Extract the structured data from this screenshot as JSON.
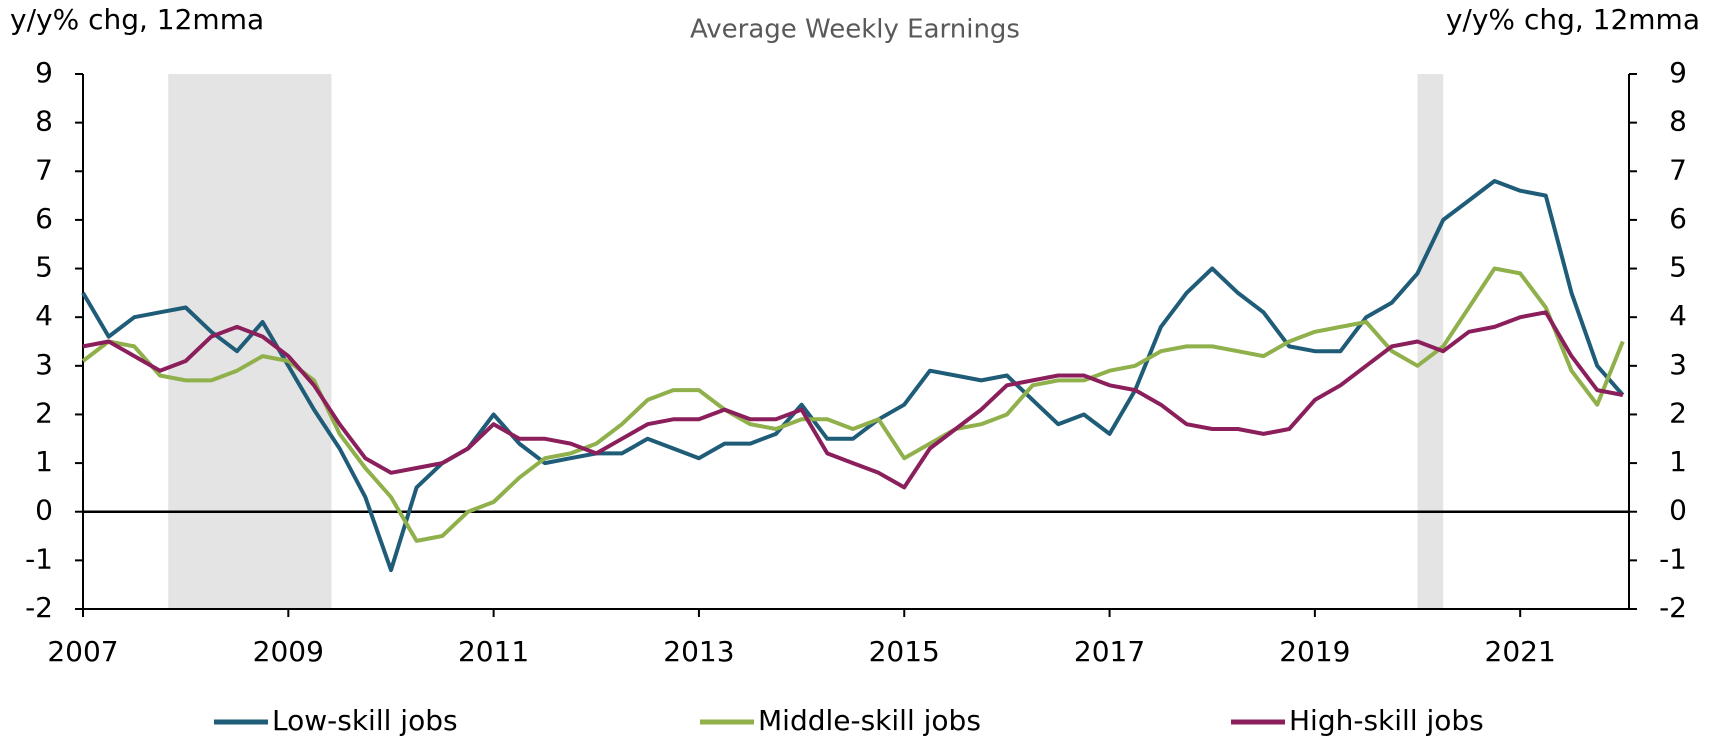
{
  "chart_data": {
    "type": "line",
    "title": "Average Weekly Earnings",
    "y_label": "y/y% chg, 12mma",
    "y2_label": "y/y% chg, 12mma",
    "x": [
      2007,
      2007.25,
      2007.5,
      2007.75,
      2008,
      2008.25,
      2008.5,
      2008.75,
      2009,
      2009.25,
      2009.5,
      2009.75,
      2010,
      2010.25,
      2010.5,
      2010.75,
      2011,
      2011.25,
      2011.5,
      2011.75,
      2012,
      2012.25,
      2012.5,
      2012.75,
      2013,
      2013.25,
      2013.5,
      2013.75,
      2014,
      2014.25,
      2014.5,
      2014.75,
      2015,
      2015.25,
      2015.5,
      2015.75,
      2016,
      2016.25,
      2016.5,
      2016.75,
      2017,
      2017.25,
      2017.5,
      2017.75,
      2018,
      2018.25,
      2018.5,
      2018.75,
      2019,
      2019.25,
      2019.5,
      2019.75,
      2020,
      2020.25,
      2020.5,
      2020.75,
      2021,
      2021.25,
      2021.5,
      2021.75,
      2022
    ],
    "series": [
      {
        "name": "Low-skill jobs",
        "color": "#1f5c78",
        "values": [
          4.5,
          3.6,
          4.0,
          4.1,
          4.2,
          3.7,
          3.3,
          3.9,
          3.0,
          2.1,
          1.3,
          0.3,
          -1.2,
          0.5,
          1.0,
          1.3,
          2.0,
          1.4,
          1.0,
          1.1,
          1.2,
          1.2,
          1.5,
          1.3,
          1.1,
          1.4,
          1.4,
          1.6,
          2.2,
          1.5,
          1.5,
          1.9,
          2.2,
          2.9,
          2.8,
          2.7,
          2.8,
          2.3,
          1.8,
          2.0,
          1.6,
          2.5,
          3.8,
          4.5,
          5.0,
          4.5,
          4.1,
          3.4,
          3.3,
          3.3,
          4.0,
          4.3,
          4.9,
          6.0,
          6.4,
          6.8,
          6.6,
          6.5,
          4.5,
          3.0,
          2.4
        ]
      },
      {
        "name": "Middle-skill jobs",
        "color": "#8fb04a",
        "values": [
          3.1,
          3.5,
          3.4,
          2.8,
          2.7,
          2.7,
          2.9,
          3.2,
          3.1,
          2.7,
          1.6,
          0.9,
          0.3,
          -0.6,
          -0.5,
          0.0,
          0.2,
          0.7,
          1.1,
          1.2,
          1.4,
          1.8,
          2.3,
          2.5,
          2.5,
          2.1,
          1.8,
          1.7,
          1.9,
          1.9,
          1.7,
          1.9,
          1.1,
          1.4,
          1.7,
          1.8,
          2.0,
          2.6,
          2.7,
          2.7,
          2.9,
          3.0,
          3.3,
          3.4,
          3.4,
          3.3,
          3.2,
          3.5,
          3.7,
          3.8,
          3.9,
          3.3,
          3.0,
          3.4,
          4.2,
          5.0,
          4.9,
          4.2,
          2.9,
          2.2,
          3.5
        ]
      },
      {
        "name": "High-skill jobs",
        "color": "#8b1f5c",
        "values": [
          3.4,
          3.5,
          3.2,
          2.9,
          3.1,
          3.6,
          3.8,
          3.6,
          3.2,
          2.6,
          1.8,
          1.1,
          0.8,
          0.9,
          1.0,
          1.3,
          1.8,
          1.5,
          1.5,
          1.4,
          1.2,
          1.5,
          1.8,
          1.9,
          1.9,
          2.1,
          1.9,
          1.9,
          2.1,
          1.2,
          1.0,
          0.8,
          0.5,
          1.3,
          1.7,
          2.1,
          2.6,
          2.7,
          2.8,
          2.8,
          2.6,
          2.5,
          2.2,
          1.8,
          1.7,
          1.7,
          1.6,
          1.7,
          2.3,
          2.6,
          3.0,
          3.4,
          3.5,
          3.3,
          3.7,
          3.8,
          4.0,
          4.1,
          3.2,
          2.5,
          2.4
        ]
      }
    ],
    "shaded_ranges": [
      [
        2007.83,
        2009.42
      ],
      [
        2020.0,
        2020.25
      ]
    ],
    "xlim": [
      2007,
      2022.06
    ],
    "xticks": [
      2007,
      2009,
      2011,
      2013,
      2015,
      2017,
      2019,
      2021
    ],
    "ylim": [
      -2,
      9
    ],
    "yticks": [
      -2,
      -1,
      0,
      1,
      2,
      3,
      4,
      5,
      6,
      7,
      8,
      9
    ],
    "y2lim": [
      -2,
      9
    ],
    "y2ticks": [
      -2,
      -1,
      0,
      1,
      2,
      3,
      4,
      5,
      6,
      7,
      8,
      9
    ],
    "legend": "bottom"
  }
}
